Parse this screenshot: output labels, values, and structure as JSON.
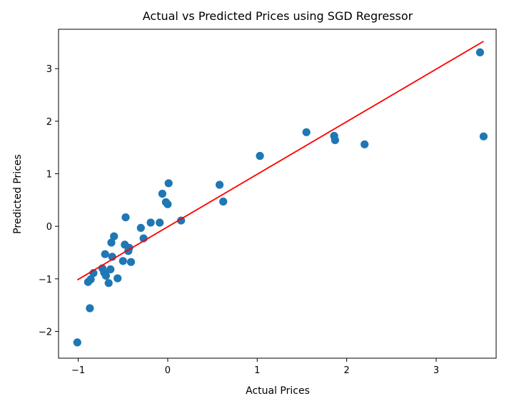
{
  "chart_data": {
    "type": "scatter",
    "title": "Actual vs Predicted Prices using SGD Regressor",
    "xlabel": "Actual Prices",
    "ylabel": "Predicted Prices",
    "xlim": [
      -1.22,
      3.67
    ],
    "ylim": [
      -2.51,
      3.75
    ],
    "xticks": [
      -1,
      0,
      1,
      2,
      3
    ],
    "yticks": [
      -2,
      -1,
      0,
      1,
      2,
      3
    ],
    "xtick_labels": [
      "−1",
      "0",
      "1",
      "2",
      "3"
    ],
    "ytick_labels": [
      "−2",
      "−1",
      "0",
      "1",
      "2",
      "3"
    ],
    "grid": false,
    "series": [
      {
        "type": "scatter",
        "color": "#1f77b4",
        "points": [
          {
            "x": -1.01,
            "y": -2.21
          },
          {
            "x": -0.87,
            "y": -1.56
          },
          {
            "x": -0.89,
            "y": -1.06
          },
          {
            "x": -0.86,
            "y": -1.01
          },
          {
            "x": -0.83,
            "y": -0.89
          },
          {
            "x": -0.73,
            "y": -0.8
          },
          {
            "x": -0.71,
            "y": -0.88
          },
          {
            "x": -0.7,
            "y": -0.53
          },
          {
            "x": -0.69,
            "y": -0.94
          },
          {
            "x": -0.66,
            "y": -1.08
          },
          {
            "x": -0.64,
            "y": -0.82
          },
          {
            "x": -0.63,
            "y": -0.31
          },
          {
            "x": -0.62,
            "y": -0.58
          },
          {
            "x": -0.6,
            "y": -0.19
          },
          {
            "x": -0.56,
            "y": -0.99
          },
          {
            "x": -0.5,
            "y": -0.66
          },
          {
            "x": -0.48,
            "y": -0.35
          },
          {
            "x": -0.47,
            "y": 0.17
          },
          {
            "x": -0.44,
            "y": -0.47
          },
          {
            "x": -0.43,
            "y": -0.41
          },
          {
            "x": -0.41,
            "y": -0.68
          },
          {
            "x": -0.3,
            "y": -0.03
          },
          {
            "x": -0.27,
            "y": -0.23
          },
          {
            "x": -0.19,
            "y": 0.07
          },
          {
            "x": -0.09,
            "y": 0.07
          },
          {
            "x": -0.06,
            "y": 0.62
          },
          {
            "x": -0.02,
            "y": 0.46
          },
          {
            "x": 0.0,
            "y": 0.42
          },
          {
            "x": 0.01,
            "y": 0.82
          },
          {
            "x": 0.15,
            "y": 0.11
          },
          {
            "x": 0.58,
            "y": 0.79
          },
          {
            "x": 0.62,
            "y": 0.47
          },
          {
            "x": 1.03,
            "y": 1.34
          },
          {
            "x": 1.55,
            "y": 1.79
          },
          {
            "x": 1.86,
            "y": 1.72
          },
          {
            "x": 1.87,
            "y": 1.64
          },
          {
            "x": 2.2,
            "y": 1.56
          },
          {
            "x": 3.49,
            "y": 3.31
          },
          {
            "x": 3.53,
            "y": 1.71
          }
        ]
      },
      {
        "type": "line",
        "color": "#ff0000",
        "points": [
          {
            "x": -1.01,
            "y": -1.02
          },
          {
            "x": 3.53,
            "y": 3.52
          }
        ]
      }
    ]
  }
}
